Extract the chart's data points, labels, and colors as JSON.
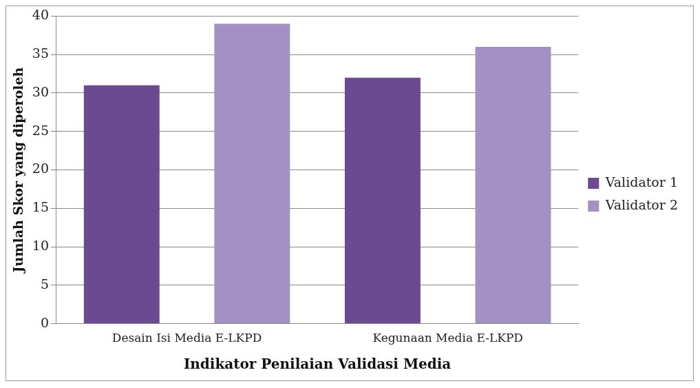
{
  "chart_data": {
    "type": "bar",
    "xlabel": "Indikator Penilaian Validasi Media",
    "ylabel": "Jumlah Skor yang diperoleh",
    "categories": [
      "Desain Isi Media E-LKPD",
      "Kegunaan Media E-LKPD"
    ],
    "series": [
      {
        "name": "Validator 1",
        "color": "#6b4a91",
        "values": [
          31,
          32
        ]
      },
      {
        "name": "Validator 2",
        "color": "#a291c2",
        "values": [
          39,
          36
        ]
      }
    ],
    "ylim": [
      0,
      40
    ],
    "yticks": [
      0,
      5,
      10,
      15,
      20,
      25,
      30,
      35,
      40
    ],
    "grid": "y",
    "legend": "right"
  }
}
